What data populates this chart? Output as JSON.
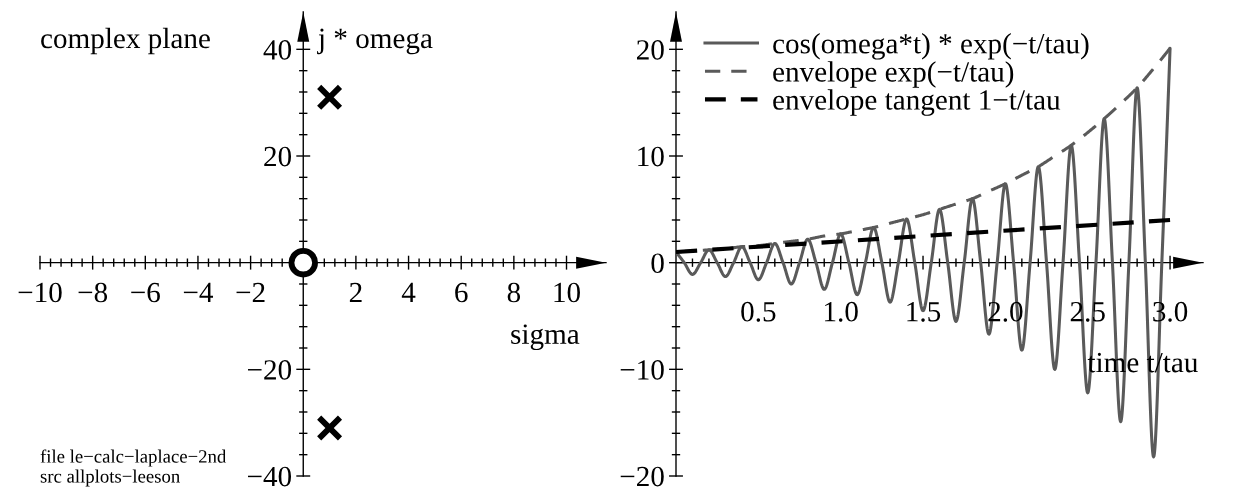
{
  "chart_data": [
    {
      "type": "scatter",
      "title": "complex plane",
      "xlabel": "sigma",
      "ylabel": "j * omega",
      "series": [
        {
          "x": [
            1,
            1
          ],
          "values": [
            31,
            -31
          ],
          "color": "#000000",
          "marker": "cross"
        },
        {
          "x": [
            0
          ],
          "values": [
            0
          ],
          "color": "#000000",
          "marker": "circle"
        }
      ],
      "xlim": [
        -10,
        11.5
      ],
      "ylim": [
        -40,
        47
      ],
      "xticks": [
        {
          "value": -10,
          "label": "−10"
        },
        {
          "value": -8,
          "label": "−8"
        },
        {
          "value": -6,
          "label": "−6"
        },
        {
          "value": -4,
          "label": "−4"
        },
        {
          "value": -2,
          "label": "−2"
        },
        2,
        4,
        6,
        8,
        10
      ],
      "yticks": [
        40,
        20,
        {
          "value": -20,
          "label": "−20"
        },
        {
          "value": -40,
          "label": "−40"
        }
      ],
      "annotations": [
        "file le−calc−laplace−2nd",
        "src allplots−leeson"
      ]
    },
    {
      "type": "line",
      "xlabel": "time t/tau",
      "series": [
        {
          "name": "cos(omega*t) * exp(−t/tau)",
          "color": "#5a5a5a",
          "line_style": "solid",
          "x": [
            0,
            0.05,
            0.1,
            0.15,
            0.2,
            0.25,
            0.3,
            0.35,
            0.4,
            0.45,
            0.5,
            0.55,
            0.6,
            0.65,
            0.7,
            0.75,
            0.8,
            0.85,
            0.9,
            0.95,
            1.0,
            1.05,
            1.1,
            1.15,
            1.2,
            1.25,
            1.3,
            1.35,
            1.4,
            1.45,
            1.5,
            1.55,
            1.6,
            1.65,
            1.7,
            1.75,
            1.8,
            1.85,
            1.9,
            1.95,
            2.0,
            2.05,
            2.1,
            2.15,
            2.2,
            2.25,
            2.3,
            2.35,
            2.4,
            2.45,
            2.5,
            2.55,
            2.6,
            2.65,
            2.7,
            2.75,
            2.8,
            2.85,
            2.9,
            2.95,
            3.0
          ],
          "values": [
            1.0,
            0,
            -1.1,
            0,
            1.2,
            0,
            -1.3,
            0,
            1.5,
            0,
            -1.6,
            0,
            1.8,
            0,
            -2.0,
            0,
            2.2,
            0,
            -2.5,
            0,
            2.7,
            0,
            -3.0,
            0,
            3.3,
            0,
            -3.7,
            0,
            4.1,
            0,
            -4.5,
            0,
            5.0,
            0,
            -5.5,
            0,
            6.0,
            0,
            -6.7,
            0,
            7.4,
            0,
            -8.2,
            0,
            9.0,
            0,
            -10.0,
            0,
            11.0,
            0,
            -12.2,
            0,
            13.5,
            0,
            -14.9,
            0,
            16.4,
            0,
            -18.2,
            0,
            20.1
          ]
        },
        {
          "name": "envelope exp(−t/tau)",
          "color": "#5a5a5a",
          "line_style": "dashed",
          "x": [
            0,
            0.1,
            0.2,
            0.3,
            0.4,
            0.5,
            0.6,
            0.7,
            0.8,
            0.9,
            1.0,
            1.1,
            1.2,
            1.3,
            1.4,
            1.5,
            1.6,
            1.7,
            1.8,
            1.9,
            2.0,
            2.1,
            2.2,
            2.3,
            2.4,
            2.5,
            2.6,
            2.7,
            2.8,
            2.9,
            3.0
          ],
          "values": [
            1.0,
            1.1,
            1.2,
            1.3,
            1.5,
            1.6,
            1.8,
            2.0,
            2.2,
            2.5,
            2.7,
            3.0,
            3.3,
            3.7,
            4.1,
            4.5,
            5.0,
            5.5,
            6.0,
            6.7,
            7.4,
            8.2,
            9.0,
            10.0,
            11.0,
            12.2,
            13.5,
            14.9,
            16.4,
            18.2,
            20.1
          ]
        },
        {
          "name": "envelope tangent 1−t/tau",
          "color": "#000000",
          "line_style": "dashed",
          "x": [
            0,
            3.0
          ],
          "values": [
            1,
            4
          ]
        }
      ],
      "xlim": [
        0,
        3.2
      ],
      "ylim": [
        -20,
        23.5
      ],
      "xticks": [
        0.5,
        {
          "value": 1.0,
          "label": "1.0"
        },
        1.5,
        {
          "value": 2.0,
          "label": "2.0"
        },
        2.5,
        {
          "value": 3.0,
          "label": "3.0"
        }
      ],
      "yticks": [
        20,
        10,
        0,
        {
          "value": -10,
          "label": "−10"
        },
        {
          "value": -20,
          "label": "−20"
        }
      ],
      "legend": "top left"
    }
  ]
}
